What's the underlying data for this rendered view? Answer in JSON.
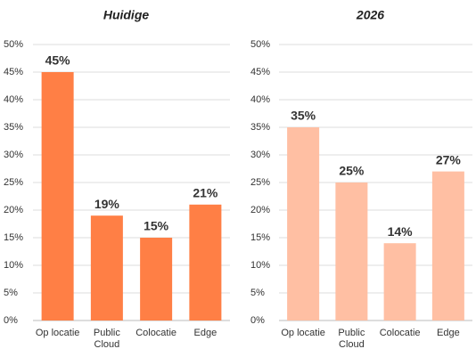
{
  "chart_data": [
    {
      "type": "bar",
      "title": "Huidige",
      "categories": [
        "Op locatie",
        "Public Cloud",
        "Colocatie",
        "Edge"
      ],
      "values": [
        45,
        19,
        15,
        21
      ],
      "value_labels": [
        "45%",
        "19%",
        "15%",
        "21%"
      ],
      "color": "#ff7f45",
      "ylim": [
        0,
        50
      ],
      "yticks": [
        {
          "value": 0,
          "label": "0%"
        },
        {
          "value": 5,
          "label": "5%"
        },
        {
          "value": 10,
          "label": "10%"
        },
        {
          "value": 15,
          "label": "15%"
        },
        {
          "value": 20,
          "label": "20%"
        },
        {
          "value": 25,
          "label": "25%"
        },
        {
          "value": 30,
          "label": "30%"
        },
        {
          "value": 35,
          "label": "35%"
        },
        {
          "value": 40,
          "label": "40%"
        },
        {
          "value": 45,
          "label": "45%"
        },
        {
          "value": 50,
          "label": "50%"
        }
      ],
      "grid": true
    },
    {
      "type": "bar",
      "title": "2026",
      "categories": [
        "Op locatie",
        "Public Cloud",
        "Colocatie",
        "Edge"
      ],
      "values": [
        35,
        25,
        14,
        27
      ],
      "value_labels": [
        "35%",
        "25%",
        "14%",
        "27%"
      ],
      "color": "#ffbfa3",
      "ylim": [
        0,
        50
      ],
      "yticks": [
        {
          "value": 0,
          "label": "0%"
        },
        {
          "value": 5,
          "label": "5%"
        },
        {
          "value": 10,
          "label": "10%"
        },
        {
          "value": 15,
          "label": "15%"
        },
        {
          "value": 20,
          "label": "20%"
        },
        {
          "value": 25,
          "label": "25%"
        },
        {
          "value": 30,
          "label": "30%"
        },
        {
          "value": 35,
          "label": "35%"
        },
        {
          "value": 40,
          "label": "40%"
        },
        {
          "value": 45,
          "label": "45%"
        },
        {
          "value": 50,
          "label": "50%"
        }
      ],
      "grid": true
    }
  ]
}
